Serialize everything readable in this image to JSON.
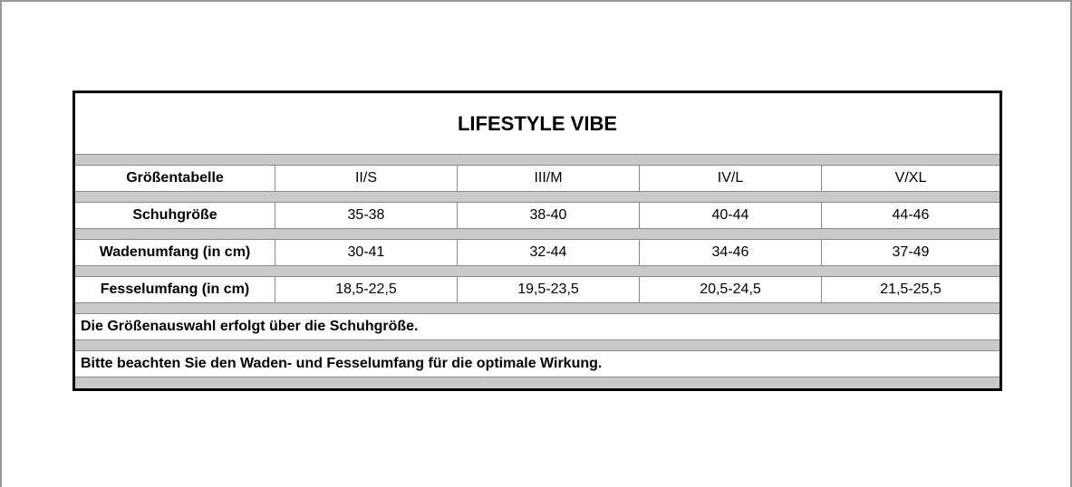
{
  "header": {
    "title": "LIFESTYLE VIBE"
  },
  "table": {
    "rows": [
      [
        "Größentabelle",
        "II/S",
        "III/M",
        "IV/L",
        "V/XL"
      ],
      [
        "Schuhgröße",
        "35-38",
        "38-40",
        "40-44",
        "44-46"
      ],
      [
        "Wadenumfang (in cm)",
        "30-41",
        "32-44",
        "34-46",
        "37-49"
      ],
      [
        "Fesselumfang (in cm)",
        "18,5-22,5",
        "19,5-23,5",
        "20,5-24,5",
        "21,5-25,5"
      ]
    ]
  },
  "notes": [
    "Die Größenauswahl erfolgt über die Schuhgröße.",
    "Bitte beachten Sie den Waden- und Fesselumfang für die optimale Wirkung."
  ]
}
